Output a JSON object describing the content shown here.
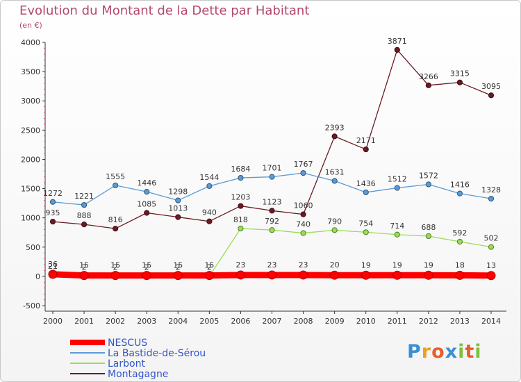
{
  "header": {
    "title": "Evolution du Montant de la Dette par Habitant",
    "unit": "(en €)"
  },
  "logo": {
    "text": "Proxiti"
  },
  "chart_data": {
    "type": "line",
    "title": "Evolution du Montant de la Dette par Habitant",
    "subtitle": "(en €)",
    "xlabel": "",
    "ylabel": "",
    "x": [
      "2000",
      "2001",
      "2002",
      "2003",
      "2004",
      "2005",
      "2006",
      "2007",
      "2008",
      "2009",
      "2010",
      "2011",
      "2012",
      "2013",
      "2014"
    ],
    "ylim": [
      -500,
      4000
    ],
    "yticks": [
      -500,
      0,
      500,
      1000,
      1500,
      2000,
      2500,
      3000,
      3500,
      4000
    ],
    "grid": false,
    "legend": "bottom-left",
    "series": [
      {
        "name": "NESCUS",
        "color": "#ff0000",
        "values": [
          36,
          15,
          15,
          15,
          15,
          15,
          23,
          23,
          23,
          20,
          19,
          19,
          19,
          18,
          13
        ]
      },
      {
        "name": "La Bastide-de-Sérou",
        "color": "#5b9bd5",
        "values": [
          1272,
          1221,
          1555,
          1446,
          1298,
          1544,
          1684,
          1701,
          1767,
          1631,
          1436,
          1512,
          1572,
          1416,
          1328
        ]
      },
      {
        "name": "Larbont",
        "color": "#99dd55",
        "values": [
          21,
          2,
          2,
          2,
          2,
          2,
          818,
          792,
          740,
          790,
          754,
          714,
          688,
          592,
          502
        ]
      },
      {
        "name": "Montagagne",
        "color": "#6b1a24",
        "values": [
          935,
          888,
          816,
          1085,
          1013,
          940,
          1203,
          1123,
          1060,
          2393,
          2171,
          3871,
          3266,
          3315,
          3095
        ]
      }
    ]
  }
}
